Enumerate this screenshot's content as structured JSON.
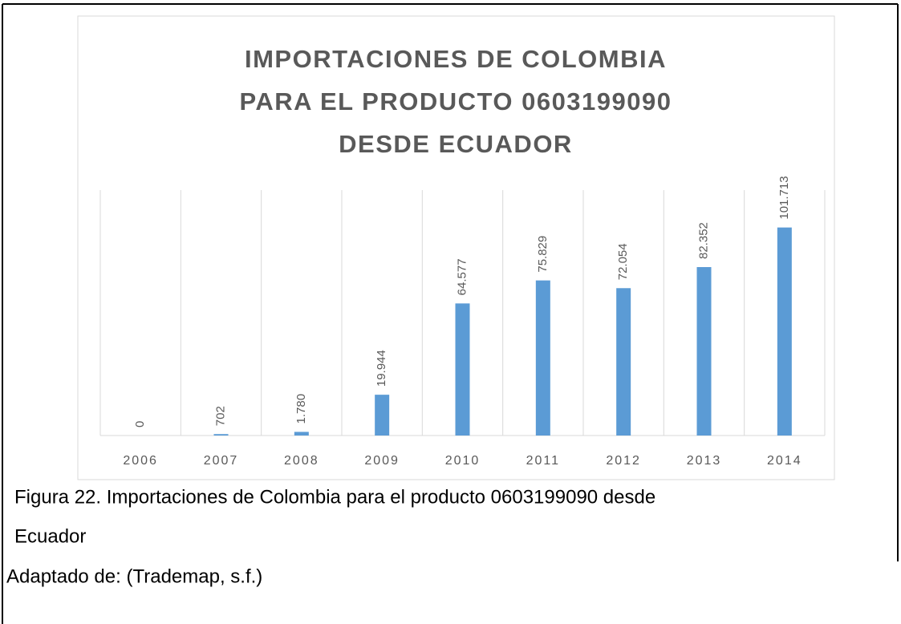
{
  "chart_data": {
    "type": "bar",
    "title": [
      "IMPORTACIONES DE COLOMBIA",
      "PARA EL PRODUCTO 0603199090",
      "DESDE ECUADOR"
    ],
    "categories": [
      "2006",
      "2007",
      "2008",
      "2009",
      "2010",
      "2011",
      "2012",
      "2013",
      "2014"
    ],
    "values": [
      0,
      702,
      1780,
      19944,
      64577,
      75829,
      72054,
      82352,
      101713
    ],
    "value_labels": [
      "0",
      "702",
      "1.780",
      "19.944",
      "64.577",
      "75.829",
      "72.054",
      "82.352",
      "101.713"
    ],
    "color": "#5b9bd5",
    "ylim": [
      0,
      120000
    ],
    "grid": true
  },
  "caption": [
    "Figura 22. Importaciones de Colombia para el producto 0603199090 desde",
    "Ecuador"
  ],
  "source": "Adaptado de: (Trademap, s.f.)"
}
